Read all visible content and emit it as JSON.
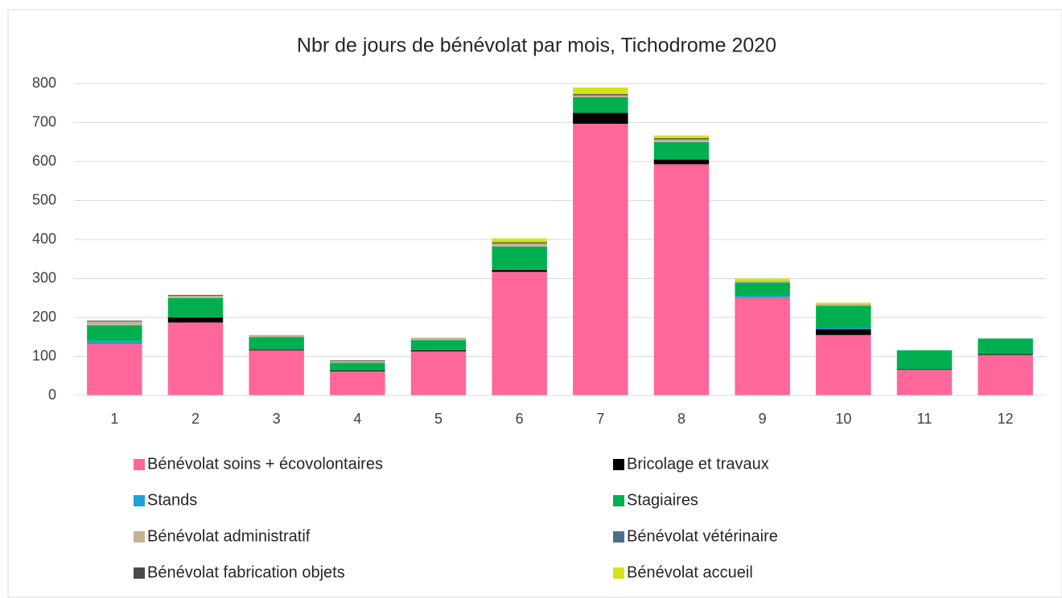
{
  "chart_data": {
    "type": "stacked_bar",
    "title": "Nbr de jours de bénévolat par mois, Tichodrome 2020",
    "categories": [
      "1",
      "2",
      "3",
      "4",
      "5",
      "6",
      "7",
      "8",
      "9",
      "10",
      "11",
      "12"
    ],
    "series": [
      {
        "name": "Bénévolat soins + écovolontaires",
        "color": "#ff6699",
        "values": [
          132,
          187,
          116,
          62,
          113,
          317,
          697,
          593,
          250,
          155,
          66,
          104
        ]
      },
      {
        "name": "Bricolage et travaux",
        "color": "#000000",
        "values": [
          0,
          13,
          2,
          2,
          3,
          5,
          28,
          12,
          0,
          15,
          1,
          2
        ]
      },
      {
        "name": "Stands",
        "color": "#1fa0d8",
        "values": [
          8,
          0,
          0,
          0,
          0,
          0,
          0,
          0,
          5,
          3,
          0,
          0
        ]
      },
      {
        "name": "Stagiaires",
        "color": "#00b050",
        "values": [
          40,
          50,
          32,
          20,
          26,
          60,
          40,
          45,
          35,
          57,
          49,
          40
        ]
      },
      {
        "name": "Bénévolat administratif",
        "color": "#c4b196",
        "values": [
          10,
          6,
          5,
          4,
          6,
          8,
          5,
          7,
          4,
          4,
          0,
          0
        ]
      },
      {
        "name": "Bénévolat vétérinaire",
        "color": "#4e6d8c",
        "values": [
          0,
          0,
          0,
          0,
          0,
          0,
          0,
          0,
          0,
          0,
          0,
          0
        ]
      },
      {
        "name": "Bénévolat fabrication objets",
        "color": "#4a4a4a",
        "values": [
          2,
          2,
          0,
          2,
          0,
          3,
          3,
          3,
          0,
          0,
          0,
          0
        ]
      },
      {
        "name": "Bénévolat accueil",
        "color": "#d4e21b",
        "values": [
          0,
          0,
          0,
          0,
          0,
          10,
          17,
          7,
          6,
          4,
          0,
          0
        ]
      }
    ],
    "ylim": [
      0,
      800
    ],
    "yticks": [
      0,
      100,
      200,
      300,
      400,
      500,
      600,
      700,
      800
    ],
    "grid": true
  }
}
